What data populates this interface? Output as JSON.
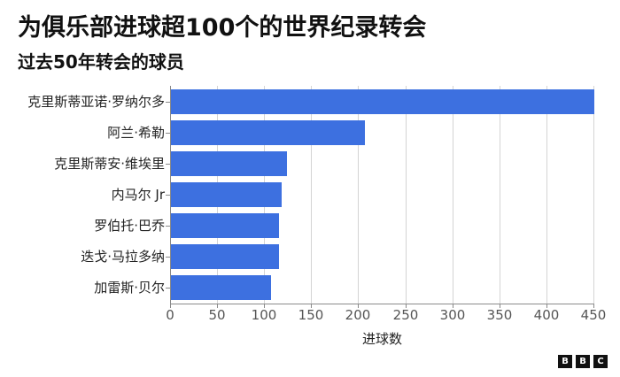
{
  "header": {
    "title": "为俱乐部进球超100个的世界纪录转会",
    "subtitle": "过去50年转会的球员"
  },
  "footer": {
    "logo_letters": [
      "B",
      "B",
      "C"
    ]
  },
  "chart_data": {
    "type": "bar",
    "orientation": "horizontal",
    "title": "为俱乐部进球超100个的世界纪录转会",
    "subtitle": "过去50年转会的球员",
    "xlabel": "进球数",
    "ylabel": "",
    "xlim": [
      0,
      450
    ],
    "x_ticks": [
      "0",
      "50",
      "100",
      "150",
      "200",
      "250",
      "300",
      "350",
      "400",
      "450"
    ],
    "grid": true,
    "legend": null,
    "bar_color": "#3d70e0",
    "categories": [
      "克里斯蒂亚诺·罗纳尔多",
      "阿兰·希勒",
      "克里斯蒂安·维埃里",
      "内马尔 Jr",
      "罗伯托·巴乔",
      "迭戈·马拉多纳",
      "加雷斯·贝尔"
    ],
    "values": [
      450,
      206,
      123,
      118,
      115,
      115,
      106
    ]
  }
}
